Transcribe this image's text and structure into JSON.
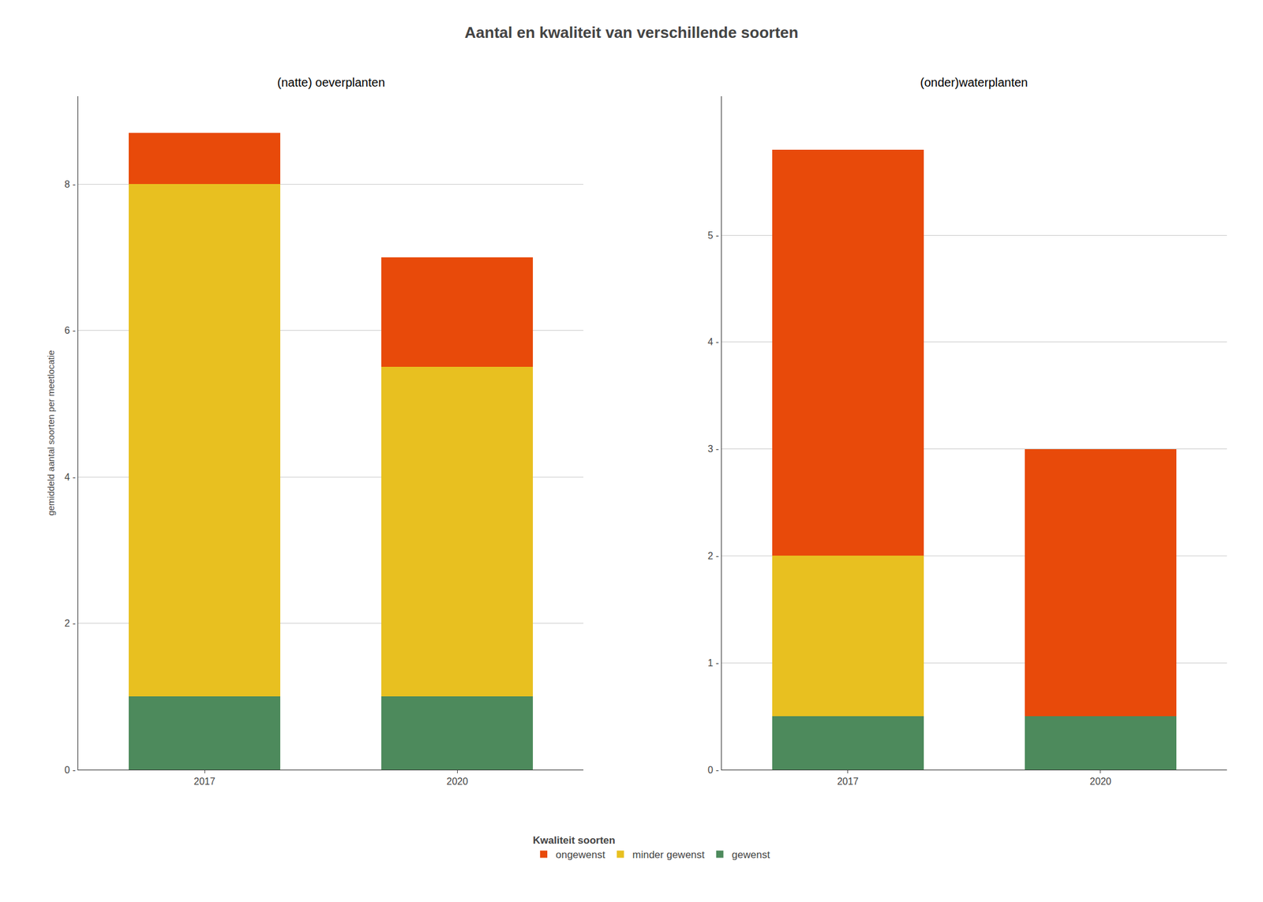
{
  "title": "Aantal en kwaliteit van verschillende soorten",
  "legend_title": "Kwaliteit soorten",
  "legend": "bottom",
  "chart_data": [
    {
      "type": "bar",
      "title": "(natte) oeverplanten",
      "y_label": "gemiddeld aantal soorten per meetlocatie",
      "categories": [
        "2017",
        "2020"
      ],
      "stacked": true,
      "grid": true,
      "series": [
        {
          "name": "gewenst",
          "color": "#4d8a5c",
          "values": [
            1.0,
            1.0
          ]
        },
        {
          "name": "minder gewenst",
          "color": "#e8c020",
          "values": [
            7.0,
            4.5
          ]
        },
        {
          "name": "ongewenst",
          "color": "#e84a0a",
          "values": [
            0.7,
            1.5
          ]
        }
      ],
      "ylim": [
        0,
        9.2
      ],
      "yticks": [
        {
          "value": 0,
          "label": "0 -"
        },
        {
          "value": 2,
          "label": "2 -"
        },
        {
          "value": 4,
          "label": "4 -"
        },
        {
          "value": 6,
          "label": "6 -"
        },
        {
          "value": 8,
          "label": "8 -"
        }
      ]
    },
    {
      "type": "bar",
      "title": "(onder)waterplanten",
      "categories": [
        "2017",
        "2020"
      ],
      "stacked": true,
      "grid": true,
      "series": [
        {
          "name": "gewenst",
          "color": "#4d8a5c",
          "values": [
            0.5,
            0.5
          ]
        },
        {
          "name": "minder gewenst",
          "color": "#e8c020",
          "values": [
            1.5,
            0.0
          ]
        },
        {
          "name": "ongewenst",
          "color": "#e84a0a",
          "values": [
            3.8,
            2.5
          ]
        }
      ],
      "ylim": [
        0,
        6.3
      ],
      "yticks": [
        {
          "value": 0,
          "label": "0 -"
        },
        {
          "value": 1,
          "label": "1 -"
        },
        {
          "value": 2,
          "label": "2 -"
        },
        {
          "value": 3,
          "label": "3 -"
        },
        {
          "value": 4,
          "label": "4 -"
        },
        {
          "value": 5,
          "label": "5 -"
        }
      ]
    }
  ]
}
